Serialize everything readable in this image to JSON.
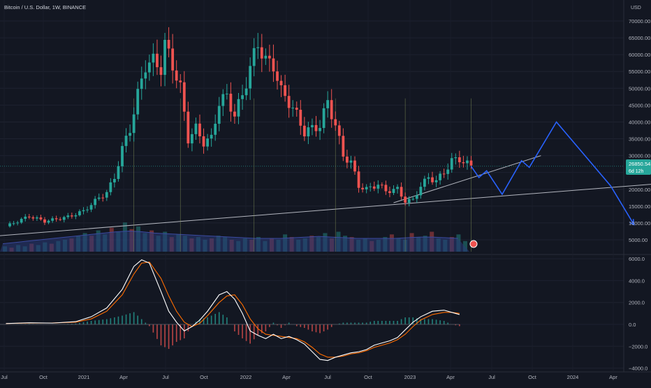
{
  "header": {
    "title": "Bitcoin / U.S. Dollar, 1W, BINANCE",
    "currency": "USD"
  },
  "price_tag": {
    "price": "26850.54",
    "countdown": "6d 12h"
  },
  "colors": {
    "background": "#131722",
    "up": "#26a69a",
    "down": "#ef5350",
    "projection": "#2962ff",
    "trendline": "#b2b5be",
    "macd_line": "#ffffff",
    "signal_line": "#ff6d00",
    "volume_ma": "#2a3a78"
  },
  "chart_data": [
    {
      "type": "candlestick",
      "title": "Bitcoin / U.S. Dollar, 1W, BINANCE",
      "ylabel": "USD",
      "ylim": [
        0,
        72000
      ],
      "y_ticks": [
        {
          "value": 70000,
          "label": "70000.00"
        },
        {
          "value": 65000,
          "label": "65000.00"
        },
        {
          "value": 60000,
          "label": "60000.00"
        },
        {
          "value": 55000,
          "label": "55000.00"
        },
        {
          "value": 50000,
          "label": "50000.00"
        },
        {
          "value": 45000,
          "label": "45000.00"
        },
        {
          "value": 40000,
          "label": "40000.00"
        },
        {
          "value": 35000,
          "label": "35000.00"
        },
        {
          "value": 30000,
          "label": "30000.00"
        },
        {
          "value": 25000,
          "label": "25000.00"
        },
        {
          "value": 20000,
          "label": "20000.00"
        },
        {
          "value": 15000,
          "label": "15000.00"
        },
        {
          "value": 10000,
          "label": "10000.00"
        },
        {
          "value": 5000,
          "label": "5000.00"
        }
      ],
      "x_ticks": [
        "Jul",
        "Oct",
        "2021",
        "Apr",
        "Jul",
        "Oct",
        "2022",
        "Apr",
        "Jul",
        "Oct",
        "2023",
        "Apr",
        "Jul",
        "Oct",
        "2024",
        "Apr"
      ],
      "price_path": [
        [
          0,
          9000
        ],
        [
          6,
          12000
        ],
        [
          10,
          10500
        ],
        [
          16,
          11800
        ],
        [
          20,
          13500
        ],
        [
          24,
          17500
        ],
        [
          26,
          19000
        ],
        [
          28,
          23500
        ],
        [
          30,
          32000
        ],
        [
          32,
          38000
        ],
        [
          34,
          48000
        ],
        [
          36,
          57000
        ],
        [
          38,
          58000
        ],
        [
          40,
          56000
        ],
        [
          41,
          63000
        ],
        [
          43,
          57000
        ],
        [
          45,
          50000
        ],
        [
          47,
          35000
        ],
        [
          49,
          38000
        ],
        [
          51,
          34000
        ],
        [
          53,
          35000
        ],
        [
          55,
          46000
        ],
        [
          57,
          47500
        ],
        [
          59,
          42000
        ],
        [
          61,
          48000
        ],
        [
          63,
          56000
        ],
        [
          65,
          63500
        ],
        [
          67,
          58000
        ],
        [
          69,
          57000
        ],
        [
          71,
          49000
        ],
        [
          73,
          46000
        ],
        [
          75,
          42000
        ],
        [
          77,
          37000
        ],
        [
          79,
          38000
        ],
        [
          81,
          39000
        ],
        [
          83,
          46000
        ],
        [
          85,
          39000
        ],
        [
          87,
          30000
        ],
        [
          89,
          28000
        ],
        [
          91,
          21000
        ],
        [
          93,
          20000
        ],
        [
          96,
          21500
        ],
        [
          98,
          19500
        ],
        [
          101,
          20000
        ],
        [
          103,
          16500
        ],
        [
          105,
          16800
        ],
        [
          107,
          21000
        ],
        [
          109,
          23500
        ],
        [
          111,
          22500
        ],
        [
          113,
          25000
        ],
        [
          115,
          28500
        ],
        [
          117,
          29000
        ],
        [
          119,
          27500
        ],
        [
          120,
          26850
        ]
      ],
      "annotation_price": "26850.54",
      "projection_path": [
        [
          120,
          26850
        ],
        [
          122,
          23500
        ],
        [
          124,
          25500
        ],
        [
          128,
          18500
        ],
        [
          133,
          28500
        ],
        [
          135,
          26500
        ],
        [
          142,
          40000
        ],
        [
          156,
          21000
        ],
        [
          162,
          9500
        ]
      ],
      "trendlines": [
        {
          "from": [
            -4,
            6000
          ],
          "to": [
            172,
            22000
          ]
        },
        {
          "from": [
            100,
            16000
          ],
          "to": [
            138,
            30000
          ]
        }
      ],
      "vertical_markers": [
        33,
        45,
        64,
        85,
        103,
        120
      ]
    },
    {
      "type": "bar",
      "name": "Volume",
      "series_note": "weekly volume histogram with moving average",
      "values": [
        4,
        3,
        5,
        4,
        6,
        5,
        7,
        6,
        8,
        9,
        10,
        12,
        14,
        12,
        16,
        13,
        18,
        15,
        22,
        17,
        19,
        14,
        16,
        12,
        15,
        11,
        13,
        12,
        10,
        11,
        9,
        10,
        12,
        11,
        9,
        8,
        10,
        9,
        11,
        8,
        10,
        9,
        13,
        11,
        9,
        10,
        12,
        11,
        14,
        10,
        15,
        12,
        11,
        9,
        10,
        8,
        9,
        11,
        13,
        10,
        9,
        14,
        11,
        12,
        15,
        10,
        9,
        11,
        13,
        8
      ],
      "ma_values": [
        6,
        7,
        8,
        9,
        10,
        11,
        12,
        13,
        14,
        15,
        15.5,
        15,
        14,
        13.5,
        13,
        12.5,
        12,
        11.5,
        11,
        10.5,
        10,
        10,
        10,
        10.5,
        11,
        11.5,
        11,
        10.5,
        10,
        10,
        10,
        10,
        10.5,
        11,
        11,
        10.5,
        10
      ]
    },
    {
      "type": "line",
      "name": "MACD",
      "ylim": [
        -4500,
        6500
      ],
      "y_ticks": [
        {
          "value": 6000,
          "label": "6000.0"
        },
        {
          "value": 4000,
          "label": "4000.0"
        },
        {
          "value": 2000,
          "label": "2000.0"
        },
        {
          "value": 0,
          "label": "0.0"
        },
        {
          "value": -2000,
          "label": "−2000.0"
        },
        {
          "value": -4000,
          "label": "−4000.0"
        }
      ],
      "series": [
        {
          "name": "MACD",
          "points": [
            [
              0,
              80
            ],
            [
              6,
              150
            ],
            [
              12,
              120
            ],
            [
              18,
              250
            ],
            [
              22,
              700
            ],
            [
              26,
              1500
            ],
            [
              30,
              3200
            ],
            [
              33,
              5300
            ],
            [
              35,
              5900
            ],
            [
              37,
              5600
            ],
            [
              40,
              3000
            ],
            [
              42,
              1200
            ],
            [
              44,
              200
            ],
            [
              46,
              -600
            ],
            [
              48,
              -200
            ],
            [
              50,
              400
            ],
            [
              52,
              1200
            ],
            [
              55,
              2700
            ],
            [
              57,
              3000
            ],
            [
              59,
              2300
            ],
            [
              61,
              1000
            ],
            [
              63,
              -600
            ],
            [
              65,
              -1000
            ],
            [
              67,
              -1300
            ],
            [
              69,
              -900
            ],
            [
              71,
              -1300
            ],
            [
              73,
              -1100
            ],
            [
              75,
              -1400
            ],
            [
              77,
              -1800
            ],
            [
              79,
              -2500
            ],
            [
              81,
              -3200
            ],
            [
              83,
              -3300
            ],
            [
              85,
              -3000
            ],
            [
              87,
              -2800
            ],
            [
              89,
              -2600
            ],
            [
              91,
              -2500
            ],
            [
              93,
              -2300
            ],
            [
              95,
              -1900
            ],
            [
              97,
              -1700
            ],
            [
              99,
              -1500
            ],
            [
              101,
              -1200
            ],
            [
              103,
              -500
            ],
            [
              105,
              200
            ],
            [
              107,
              700
            ],
            [
              110,
              1200
            ],
            [
              113,
              1300
            ],
            [
              115,
              1100
            ],
            [
              117,
              900
            ]
          ]
        },
        {
          "name": "Signal",
          "points": [
            [
              0,
              80
            ],
            [
              6,
              120
            ],
            [
              12,
              130
            ],
            [
              18,
              200
            ],
            [
              22,
              500
            ],
            [
              26,
              1200
            ],
            [
              30,
              2700
            ],
            [
              33,
              4600
            ],
            [
              35,
              5600
            ],
            [
              37,
              5700
            ],
            [
              40,
              4200
            ],
            [
              42,
              2600
            ],
            [
              44,
              1200
            ],
            [
              46,
              200
            ],
            [
              48,
              -200
            ],
            [
              50,
              100
            ],
            [
              52,
              800
            ],
            [
              55,
              2000
            ],
            [
              57,
              2600
            ],
            [
              59,
              2700
            ],
            [
              61,
              1800
            ],
            [
              63,
              500
            ],
            [
              65,
              -400
            ],
            [
              67,
              -900
            ],
            [
              69,
              -1000
            ],
            [
              71,
              -1100
            ],
            [
              73,
              -1200
            ],
            [
              75,
              -1300
            ],
            [
              77,
              -1600
            ],
            [
              79,
              -2100
            ],
            [
              81,
              -2700
            ],
            [
              83,
              -3000
            ],
            [
              85,
              -3000
            ],
            [
              87,
              -2900
            ],
            [
              89,
              -2700
            ],
            [
              91,
              -2600
            ],
            [
              93,
              -2400
            ],
            [
              95,
              -2100
            ],
            [
              97,
              -1900
            ],
            [
              99,
              -1700
            ],
            [
              101,
              -1400
            ],
            [
              103,
              -900
            ],
            [
              105,
              -200
            ],
            [
              107,
              400
            ],
            [
              110,
              900
            ],
            [
              113,
              1100
            ],
            [
              115,
              1100
            ],
            [
              117,
              1000
            ]
          ]
        }
      ]
    }
  ]
}
